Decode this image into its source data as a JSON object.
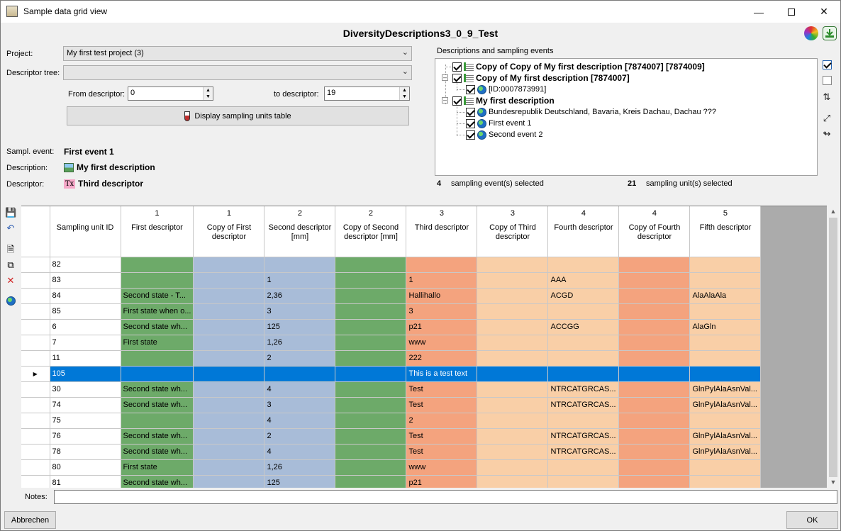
{
  "window": {
    "title": "Sample data grid view"
  },
  "header": {
    "title": "DiversityDescriptions3_0_9_Test"
  },
  "form": {
    "project_label": "Project:",
    "project_value": "My first test project (3)",
    "descriptor_tree_label": "Descriptor tree:",
    "descriptor_tree_value": "",
    "from_descriptor_label": "From descriptor:",
    "from_descriptor_value": "0",
    "to_descriptor_label": "to descriptor:",
    "to_descriptor_value": "19",
    "display_button": "Display sampling units table"
  },
  "info": {
    "sampl_event_label": "Sampl. event:",
    "sampl_event_value": "First event 1",
    "description_label": "Description:",
    "description_value": "My first description",
    "descriptor_label": "Descriptor:",
    "descriptor_value": "Third descriptor",
    "descriptor_icon_text": "Tx"
  },
  "tree": {
    "group_label": "Descriptions and sampling events",
    "nodes": [
      {
        "text": "Copy of Copy of My first description [7874007] [7874009]"
      },
      {
        "text": "Copy of My first description [7874007]"
      },
      {
        "text": "[ID:0007873991]"
      },
      {
        "text": "My first description"
      },
      {
        "text": "Bundesrepublik Deutschland, Bavaria, Kreis Dachau, Dachau ???"
      },
      {
        "text": "First event 1"
      },
      {
        "text": "Second event 2"
      }
    ]
  },
  "status": {
    "events_count": "4",
    "events_text": "sampling event(s) selected",
    "units_count": "21",
    "units_text": "sampling unit(s) selected"
  },
  "grid": {
    "columns": [
      {
        "num": "",
        "text": "Sampling unit ID"
      },
      {
        "num": "1",
        "text": "First descriptor"
      },
      {
        "num": "1",
        "text": "Copy of First descriptor"
      },
      {
        "num": "2",
        "text": "Second descriptor [mm]"
      },
      {
        "num": "2",
        "text": "Copy of Second descriptor [mm]"
      },
      {
        "num": "3",
        "text": "Third descriptor"
      },
      {
        "num": "3",
        "text": "Copy of Third descriptor"
      },
      {
        "num": "4",
        "text": "Fourth descriptor"
      },
      {
        "num": "4",
        "text": "Copy of Fourth descriptor"
      },
      {
        "num": "5",
        "text": "Fifth descriptor"
      }
    ],
    "rows": [
      [
        "82",
        "",
        "",
        "",
        "",
        "",
        "",
        "",
        "",
        ""
      ],
      [
        "83",
        "",
        "",
        "1",
        "",
        "1",
        "",
        "AAA",
        "",
        ""
      ],
      [
        "84",
        "Second state - T...",
        "",
        "2,36",
        "",
        "Hallihallo",
        "",
        "ACGD",
        "",
        "AlaAlaAla"
      ],
      [
        "85",
        "First state when o...",
        "",
        "3",
        "",
        "3",
        "",
        "",
        "",
        ""
      ],
      [
        "6",
        "Second state wh...",
        "",
        "125",
        "",
        "p21",
        "",
        "ACCGG",
        "",
        "AlaGln"
      ],
      [
        "7",
        "First state",
        "",
        "1,26",
        "",
        "www",
        "",
        "",
        "",
        ""
      ],
      [
        "11",
        "",
        "",
        "2",
        "",
        "222",
        "",
        "",
        "",
        ""
      ],
      [
        "105",
        "",
        "",
        "",
        "",
        "This is a test text",
        "",
        "",
        "",
        ""
      ],
      [
        "30",
        "Second state wh...",
        "",
        "4",
        "",
        "Test",
        "",
        "NTRCATGRCAS...",
        "",
        "GlnPylAlaAsnVal..."
      ],
      [
        "74",
        "Second state wh...",
        "",
        "3",
        "",
        "Test",
        "",
        "NTRCATGRCAS...",
        "",
        "GlnPylAlaAsnVal..."
      ],
      [
        "75",
        "",
        "",
        "4",
        "",
        "2",
        "",
        "",
        "",
        ""
      ],
      [
        "76",
        "Second state wh...",
        "",
        "2",
        "",
        "Test",
        "",
        "NTRCATGRCAS...",
        "",
        "GlnPylAlaAsnVal..."
      ],
      [
        "78",
        "Second state wh...",
        "",
        "4",
        "",
        "Test",
        "",
        "NTRCATGRCAS...",
        "",
        "GlnPylAlaAsnVal..."
      ],
      [
        "80",
        "First state",
        "",
        "1,26",
        "",
        "www",
        "",
        "",
        "",
        ""
      ],
      [
        "81",
        "Second state wh...",
        "",
        "125",
        "",
        "p21",
        "",
        "",
        "",
        ""
      ]
    ],
    "selected_row_index": 7,
    "column_colors": [
      "#ffffff",
      "#6daa69",
      "#a8bcd8",
      "#a8bcd8",
      "#6daa69",
      "#f4a37e",
      "#f9cfa7",
      "#f9cfa7",
      "#f4a37e",
      "#f9cfa7"
    ],
    "selected_color": "#0078d7"
  },
  "notes": {
    "label": "Notes:",
    "value": ""
  },
  "buttons": {
    "cancel": "Abbrechen",
    "ok": "OK"
  }
}
